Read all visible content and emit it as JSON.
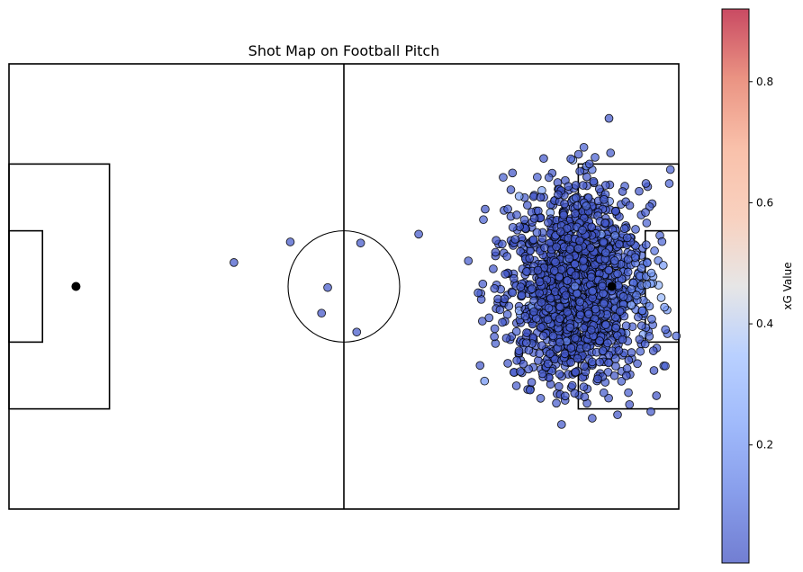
{
  "chart_data": {
    "type": "scatter",
    "title": "Shot Map on Football Pitch",
    "xlabel": "",
    "ylabel": "",
    "xlim": [
      0,
      120
    ],
    "ylim": [
      0,
      80
    ],
    "grid": false,
    "axes_visible": false,
    "pitch": {
      "length": 120,
      "width": 80,
      "halfway_x": 60,
      "center_spot": [
        60,
        40
      ],
      "center_circle_radius": 10,
      "left_penalty_spot": [
        12,
        40
      ],
      "right_penalty_spot": [
        108,
        40
      ],
      "penalty_area": {
        "depth": 18,
        "y_range": [
          18,
          62
        ]
      },
      "six_yard_box": {
        "depth": 6,
        "y_range": [
          30,
          50
        ]
      }
    },
    "colorbar": {
      "label": "xG Value",
      "cmap": "coolwarm",
      "range": [
        0.005,
        0.92
      ],
      "ticks": [
        0.2,
        0.4,
        0.6,
        0.8
      ],
      "tick_labels": [
        "0.2",
        "0.4",
        "0.6",
        "0.8"
      ]
    },
    "outlier_shots": [
      {
        "x": 40.3,
        "y": 44.3,
        "xg": 0.04
      },
      {
        "x": 50.4,
        "y": 48.0,
        "xg": 0.04
      },
      {
        "x": 56.0,
        "y": 35.2,
        "xg": 0.03
      },
      {
        "x": 57.1,
        "y": 39.8,
        "xg": 0.04
      },
      {
        "x": 62.3,
        "y": 31.8,
        "xg": 0.04
      },
      {
        "x": 63.0,
        "y": 47.8,
        "xg": 0.04
      },
      {
        "x": 73.4,
        "y": 49.4,
        "xg": 0.04
      },
      {
        "x": 82.3,
        "y": 44.6,
        "xg": 0.05
      },
      {
        "x": 84.4,
        "y": 25.8,
        "xg": 0.04
      },
      {
        "x": 85.0,
        "y": 52.0,
        "xg": 0.06
      },
      {
        "x": 103.0,
        "y": 65.0,
        "xg": 0.06
      },
      {
        "x": 104.0,
        "y": 62.0,
        "xg": 0.05
      },
      {
        "x": 105.0,
        "y": 63.2,
        "xg": 0.06
      },
      {
        "x": 107.5,
        "y": 70.2,
        "xg": 0.04
      },
      {
        "x": 118.5,
        "y": 61.0,
        "xg": 0.06
      },
      {
        "x": 118.3,
        "y": 58.5,
        "xg": 0.07
      },
      {
        "x": 115.0,
        "y": 17.5,
        "xg": 0.04
      },
      {
        "x": 99.0,
        "y": 15.2,
        "xg": 0.04
      }
    ],
    "shot_cloud": {
      "count": 1500,
      "x_range": [
        84,
        120
      ],
      "y_range": [
        16,
        64
      ],
      "center": [
        102,
        40
      ],
      "xg_range": [
        0.005,
        0.92
      ],
      "high_xg_region": {
        "x_range": [
          108,
          119
        ],
        "y_range": [
          30,
          52
        ]
      }
    }
  }
}
